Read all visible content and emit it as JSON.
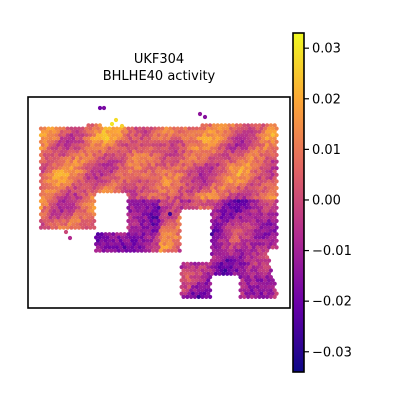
{
  "chart_data": {
    "type": "scatter",
    "title": "UKF304",
    "subtitle": "BHLHE40 activity",
    "colormap": "plasma",
    "colorbar": {
      "min": -0.034,
      "max": 0.033,
      "ticks": [
        {
          "value": 0.03,
          "label": "0.03"
        },
        {
          "value": 0.02,
          "label": "0.02"
        },
        {
          "value": 0.01,
          "label": "0.01"
        },
        {
          "value": 0.0,
          "label": "0.00"
        },
        {
          "value": -0.01,
          "label": "−0.01"
        },
        {
          "value": -0.02,
          "label": "−0.02"
        },
        {
          "value": -0.03,
          "label": "−0.03"
        }
      ]
    },
    "axes_visible": false,
    "colors": {
      "plasma_stops": [
        "#0d0887",
        "#6a00a8",
        "#b12a90",
        "#e16462",
        "#fca636",
        "#f0f921"
      ]
    }
  }
}
